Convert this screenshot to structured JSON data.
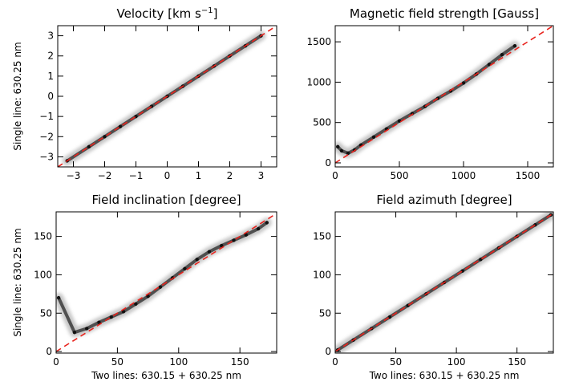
{
  "chart_data": [
    {
      "type": "scatter",
      "title": "Velocity [km s⁻¹]",
      "title_parts": [
        "Velocity [km s",
        "−1",
        "]"
      ],
      "xlabel": "",
      "ylabel": "Single line: 630.25 nm",
      "xlim": [
        -3.5,
        3.5
      ],
      "ylim": [
        -3.5,
        3.5
      ],
      "xticks": [
        -3,
        -2,
        -1,
        0,
        1,
        2,
        3
      ],
      "yticks": [
        -3,
        -2,
        -1,
        0,
        1,
        2,
        3
      ],
      "xtick_labels": [
        "−3",
        "−2",
        "−1",
        "0",
        "1",
        "2",
        "3"
      ],
      "ytick_labels": [
        "−3",
        "−2",
        "−1",
        "0",
        "1",
        "2",
        "3"
      ],
      "series": [
        {
          "x": [
            -3.2,
            -2.5,
            -2.0,
            -1.5,
            -1.0,
            -0.5,
            0.0,
            0.5,
            1.0,
            1.5,
            2.0,
            2.5,
            3.0
          ],
          "y": [
            -3.2,
            -2.5,
            -2.0,
            -1.5,
            -1.0,
            -0.5,
            0.0,
            0.5,
            1.0,
            1.5,
            2.0,
            2.5,
            3.0
          ]
        }
      ],
      "reference_line": {
        "x": [
          -3.5,
          3.5
        ],
        "y": [
          -3.5,
          3.5
        ],
        "color": "#e8231d",
        "style": "dashed"
      }
    },
    {
      "type": "scatter",
      "title": "Magnetic field strength [Gauss]",
      "xlabel": "",
      "ylabel": "",
      "xlim": [
        0,
        1700
      ],
      "ylim": [
        -50,
        1700
      ],
      "xticks": [
        0,
        500,
        1000,
        1500
      ],
      "yticks": [
        0,
        500,
        1000,
        1500
      ],
      "xtick_labels": [
        "0",
        "500",
        "1000",
        "1500"
      ],
      "ytick_labels": [
        "0",
        "500",
        "1000",
        "1500"
      ],
      "series": [
        {
          "x": [
            20,
            50,
            100,
            150,
            200,
            300,
            400,
            500,
            600,
            700,
            800,
            900,
            1000,
            1100,
            1200,
            1300,
            1400
          ],
          "y": [
            200,
            150,
            120,
            160,
            220,
            320,
            420,
            520,
            610,
            700,
            800,
            890,
            990,
            1100,
            1220,
            1340,
            1450
          ]
        }
      ],
      "reference_line": {
        "x": [
          0,
          1700
        ],
        "y": [
          0,
          1700
        ],
        "color": "#e8231d",
        "style": "dashed"
      }
    },
    {
      "type": "scatter",
      "title": "Field inclination [degree]",
      "xlabel": "Two lines: 630.15 + 630.25 nm",
      "ylabel": "Single line: 630.25 nm",
      "xlim": [
        0,
        180
      ],
      "ylim": [
        -2,
        182
      ],
      "xticks": [
        0,
        50,
        100,
        150
      ],
      "yticks": [
        0,
        50,
        100,
        150
      ],
      "xtick_labels": [
        "0",
        "50",
        "100",
        "150"
      ],
      "ytick_labels": [
        "0",
        "50",
        "100",
        "150"
      ],
      "series": [
        {
          "x": [
            2,
            15,
            25,
            35,
            45,
            55,
            65,
            75,
            85,
            95,
            105,
            115,
            125,
            135,
            145,
            155,
            165,
            172
          ],
          "y": [
            70,
            25,
            30,
            38,
            45,
            52,
            62,
            72,
            84,
            96,
            108,
            120,
            130,
            138,
            145,
            152,
            160,
            168
          ]
        }
      ],
      "reference_line": {
        "x": [
          0,
          180
        ],
        "y": [
          0,
          180
        ],
        "color": "#e8231d",
        "style": "dashed"
      }
    },
    {
      "type": "scatter",
      "title": "Field azimuth [degree]",
      "xlabel": "Two lines: 630.15 + 630.25 nm",
      "ylabel": "",
      "xlim": [
        0,
        180
      ],
      "ylim": [
        -2,
        182
      ],
      "xticks": [
        0,
        50,
        100,
        150
      ],
      "yticks": [
        0,
        50,
        100,
        150
      ],
      "xtick_labels": [
        "0",
        "50",
        "100",
        "150"
      ],
      "ytick_labels": [
        "0",
        "50",
        "100",
        "150"
      ],
      "series": [
        {
          "x": [
            2,
            15,
            30,
            45,
            60,
            75,
            90,
            105,
            120,
            135,
            150,
            165,
            178
          ],
          "y": [
            2,
            15,
            30,
            45,
            60,
            75,
            90,
            105,
            120,
            135,
            150,
            165,
            178
          ]
        }
      ],
      "reference_line": {
        "x": [
          0,
          180
        ],
        "y": [
          0,
          180
        ],
        "color": "#e8231d",
        "style": "dashed"
      }
    }
  ]
}
